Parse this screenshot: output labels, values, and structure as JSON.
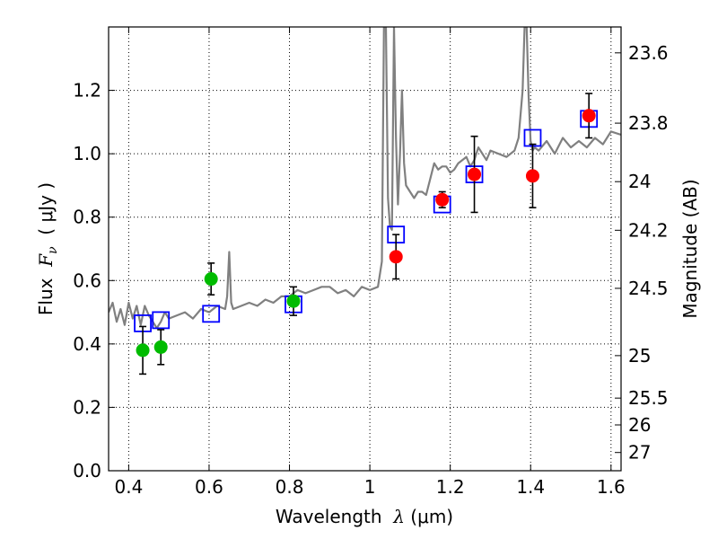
{
  "chart_data": {
    "type": "scatter",
    "title": "",
    "xlabel": {
      "prefix": "Wavelength  ",
      "symbol": "λ",
      "unit": " (μm)"
    },
    "ylabel": {
      "prefix": "Flux  ",
      "symbol": "F",
      "subscript": "ν",
      "unit": "  ( μJy )"
    },
    "ylabel_right": "Magnitude (AB)",
    "xlim": [
      0.35,
      1.625
    ],
    "ylim": [
      0.0,
      1.4
    ],
    "grid": true,
    "x_ticks": [
      0.4,
      0.6,
      0.8,
      1.0,
      1.2,
      1.4,
      1.6
    ],
    "x_tick_labels": [
      "0.4",
      "0.6",
      "0.8",
      "1",
      "1.2",
      "1.4",
      "1.6"
    ],
    "y_ticks": [
      0.0,
      0.2,
      0.4,
      0.6,
      0.8,
      1.0,
      1.2
    ],
    "y_tick_labels": [
      "0.0",
      "0.2",
      "0.4",
      "0.6",
      "0.8",
      "1.0",
      "1.2"
    ],
    "right_ticks": [
      {
        "label": "23.6",
        "flux": 1.3183
      },
      {
        "label": "23.8",
        "flux": 1.0965
      },
      {
        "label": "24",
        "flux": 0.912
      },
      {
        "label": "24.2",
        "flux": 0.7586
      },
      {
        "label": "24.5",
        "flux": 0.5754
      },
      {
        "label": "25",
        "flux": 0.3631
      },
      {
        "label": "25.5",
        "flux": 0.2291
      },
      {
        "label": "26",
        "flux": 0.1445
      },
      {
        "label": "27",
        "flux": 0.0575
      }
    ],
    "colors": {
      "spectrum": "#808080",
      "model": "#0000ff",
      "green": "#00bb00",
      "red": "#ff0000",
      "errorbar": "#000000",
      "grid": "#000000"
    },
    "series": [
      {
        "name": "model spectrum",
        "kind": "line",
        "x": [
          0.35,
          0.36,
          0.37,
          0.38,
          0.39,
          0.4,
          0.41,
          0.42,
          0.43,
          0.44,
          0.45,
          0.46,
          0.47,
          0.48,
          0.49,
          0.5,
          0.52,
          0.54,
          0.56,
          0.58,
          0.6,
          0.62,
          0.64,
          0.645,
          0.65,
          0.655,
          0.66,
          0.68,
          0.7,
          0.72,
          0.74,
          0.76,
          0.78,
          0.8,
          0.82,
          0.84,
          0.86,
          0.88,
          0.9,
          0.92,
          0.94,
          0.96,
          0.98,
          1.0,
          1.02,
          1.03,
          1.035,
          1.04,
          1.045,
          1.05,
          1.055,
          1.06,
          1.065,
          1.07,
          1.075,
          1.08,
          1.085,
          1.09,
          1.1,
          1.11,
          1.12,
          1.13,
          1.14,
          1.15,
          1.16,
          1.17,
          1.18,
          1.19,
          1.2,
          1.21,
          1.22,
          1.23,
          1.24,
          1.25,
          1.26,
          1.27,
          1.28,
          1.29,
          1.3,
          1.32,
          1.34,
          1.36,
          1.37,
          1.38,
          1.385,
          1.39,
          1.395,
          1.4,
          1.405,
          1.41,
          1.42,
          1.44,
          1.46,
          1.48,
          1.5,
          1.52,
          1.54,
          1.56,
          1.58,
          1.6,
          1.625
        ],
        "y": [
          0.5,
          0.53,
          0.47,
          0.51,
          0.46,
          0.53,
          0.48,
          0.52,
          0.46,
          0.52,
          0.49,
          0.47,
          0.45,
          0.47,
          0.5,
          0.48,
          0.49,
          0.5,
          0.48,
          0.51,
          0.5,
          0.52,
          0.51,
          0.55,
          0.69,
          0.53,
          0.51,
          0.52,
          0.53,
          0.52,
          0.54,
          0.53,
          0.55,
          0.55,
          0.57,
          0.56,
          0.57,
          0.58,
          0.58,
          0.56,
          0.57,
          0.55,
          0.58,
          0.57,
          0.58,
          0.66,
          1.4,
          1.4,
          0.86,
          0.77,
          0.76,
          1.4,
          1.05,
          0.84,
          1.0,
          1.2,
          0.97,
          0.9,
          0.88,
          0.86,
          0.88,
          0.88,
          0.87,
          0.92,
          0.97,
          0.95,
          0.96,
          0.96,
          0.94,
          0.95,
          0.97,
          0.98,
          0.99,
          0.96,
          0.98,
          1.02,
          1.0,
          0.98,
          1.01,
          1.0,
          0.99,
          1.01,
          1.05,
          1.2,
          1.4,
          1.4,
          1.18,
          1.04,
          1.01,
          1.02,
          1.01,
          1.04,
          1.0,
          1.05,
          1.02,
          1.04,
          1.02,
          1.05,
          1.03,
          1.07,
          1.06
        ]
      },
      {
        "name": "model photometry",
        "kind": "open-square",
        "x": [
          0.435,
          0.48,
          0.605,
          0.81,
          1.065,
          1.18,
          1.26,
          1.405,
          1.545
        ],
        "y": [
          0.465,
          0.475,
          0.495,
          0.525,
          0.745,
          0.84,
          0.935,
          1.05,
          1.11
        ]
      },
      {
        "name": "observed (green)",
        "kind": "filled-circle",
        "x": [
          0.435,
          0.48,
          0.605,
          0.81
        ],
        "y": [
          0.38,
          0.39,
          0.605,
          0.535
        ],
        "yerr": [
          0.075,
          0.055,
          0.05,
          0.045
        ]
      },
      {
        "name": "observed (red)",
        "kind": "filled-circle",
        "x": [
          1.065,
          1.18,
          1.26,
          1.405,
          1.545
        ],
        "y": [
          0.675,
          0.855,
          0.935,
          0.93,
          1.12
        ],
        "yerr": [
          0.07,
          0.025,
          0.12,
          0.1,
          0.07
        ]
      }
    ]
  }
}
